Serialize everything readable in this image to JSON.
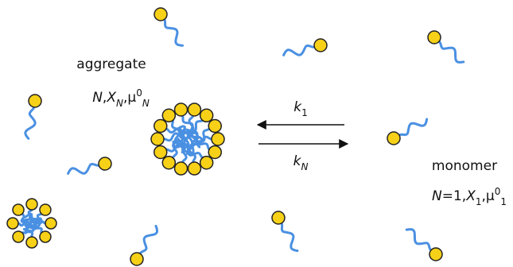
{
  "aggregate": {
    "label": "aggregate",
    "params": [
      {
        "text": "N",
        "style": "italic"
      },
      {
        "text": ","
      },
      {
        "text": "X",
        "style": "italic"
      },
      {
        "text": "N",
        "style": "italic-sub"
      },
      {
        "text": ","
      },
      {
        "text": "μ"
      },
      {
        "text": "0",
        "style": "sup"
      },
      {
        "text": "N",
        "style": "italic-sub"
      }
    ]
  },
  "monomer": {
    "label": "monomer",
    "params": [
      {
        "text": "N",
        "style": "italic"
      },
      {
        "text": "=1"
      },
      {
        "text": ","
      },
      {
        "text": "X",
        "style": "italic"
      },
      {
        "text": "1",
        "style": "sub"
      },
      {
        "text": ","
      },
      {
        "text": "μ"
      },
      {
        "text": "0",
        "style": "sup"
      },
      {
        "text": "1",
        "style": "sub"
      }
    ]
  },
  "rates": {
    "forward": [
      {
        "text": "k",
        "style": "italic"
      },
      {
        "text": "1",
        "style": "sub"
      }
    ],
    "backward": [
      {
        "text": "k",
        "style": "italic"
      },
      {
        "text": "N",
        "style": "italic-sub"
      }
    ]
  }
}
